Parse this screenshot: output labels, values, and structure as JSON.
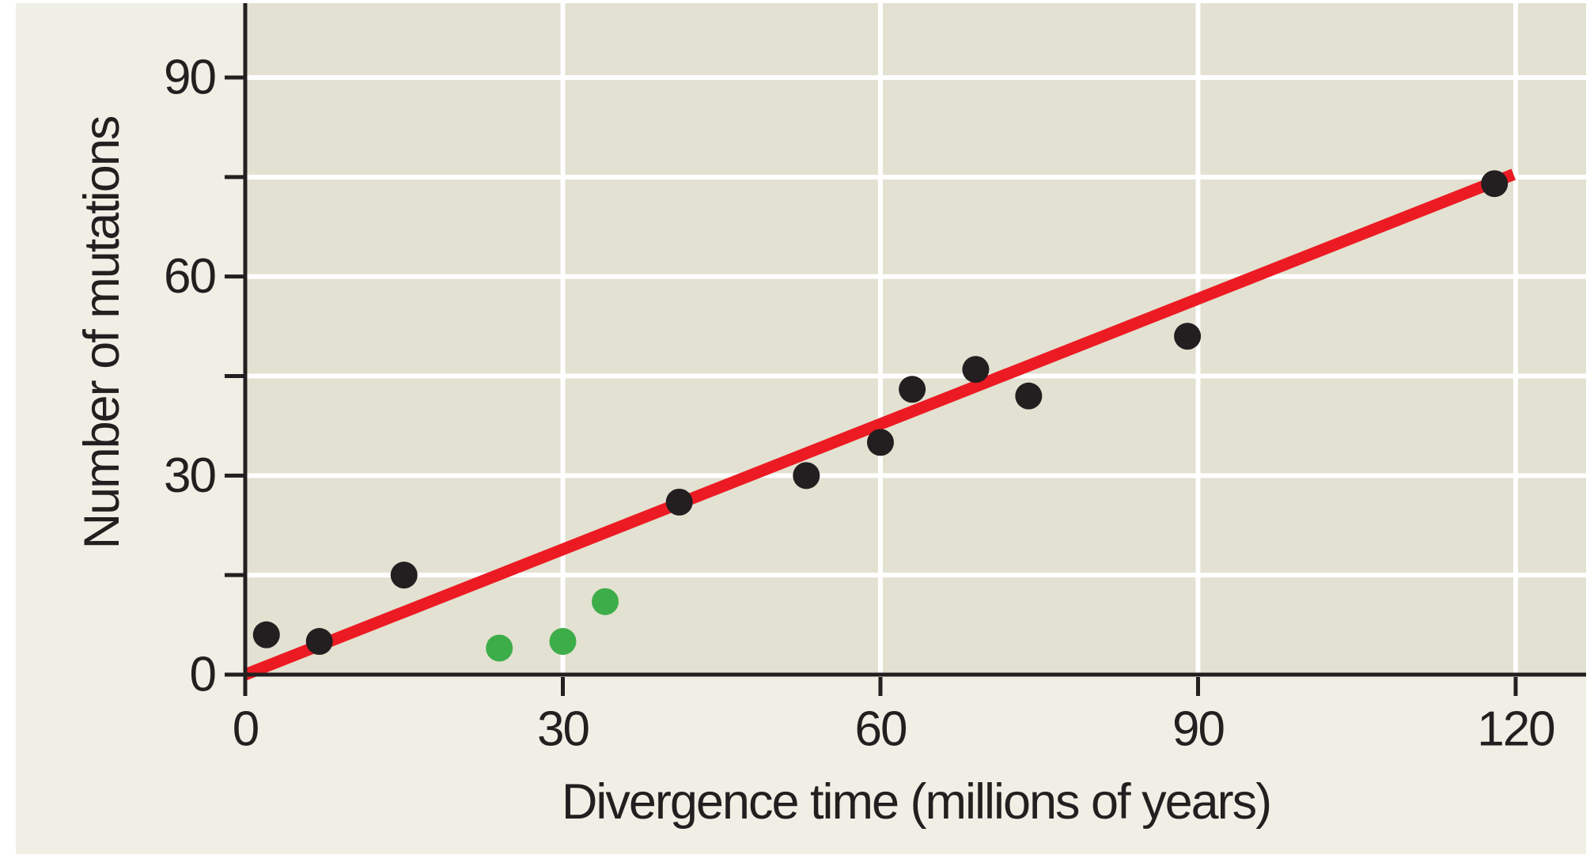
{
  "figure": {
    "x_axis_title": "Divergence time (millions of years)",
    "y_axis_title": "Number of mutations"
  },
  "colors": {
    "page_bg": "#ffffff",
    "figure_bg": "#f0efe5",
    "plot_bg": "#e3e1d1",
    "gridline": "#ffffff",
    "axis": "#231f20",
    "text": "#231f20",
    "trend_line": "#ec1b23",
    "point_black": "#231f20",
    "point_green": "#3dad4a"
  },
  "chart_data": {
    "type": "scatter",
    "title": "",
    "xlabel": "Divergence time (millions of years)",
    "ylabel": "Number of mutations",
    "xlim": [
      0,
      127
    ],
    "ylim": [
      0,
      101
    ],
    "x_ticks": [
      0,
      30,
      60,
      90,
      120
    ],
    "y_ticks_labeled": [
      0,
      30,
      60,
      90
    ],
    "y_ticks_minor_unlabeled": [
      15,
      45,
      75
    ],
    "grid": "white gridlines at every tick (including unlabeled y ticks 15/45/75), on khaki plot background",
    "legend": "none",
    "series": [
      {
        "name": "black-data-points",
        "color": "#231f20",
        "points": [
          [
            2,
            6
          ],
          [
            7,
            5
          ],
          [
            15,
            15
          ],
          [
            41,
            26
          ],
          [
            53,
            30
          ],
          [
            60,
            35
          ],
          [
            63,
            43
          ],
          [
            69,
            46
          ],
          [
            74,
            42
          ],
          [
            89,
            51
          ],
          [
            118,
            74
          ]
        ]
      },
      {
        "name": "green-data-points",
        "color": "#3dad4a",
        "points": [
          [
            24,
            4
          ],
          [
            30,
            5
          ],
          [
            34,
            11
          ]
        ]
      }
    ],
    "trend_line": {
      "color": "#ec1b23",
      "from": [
        0,
        0
      ],
      "to": [
        119.8,
        75.4
      ],
      "slope_mutations_per_million_years": 0.63
    }
  }
}
